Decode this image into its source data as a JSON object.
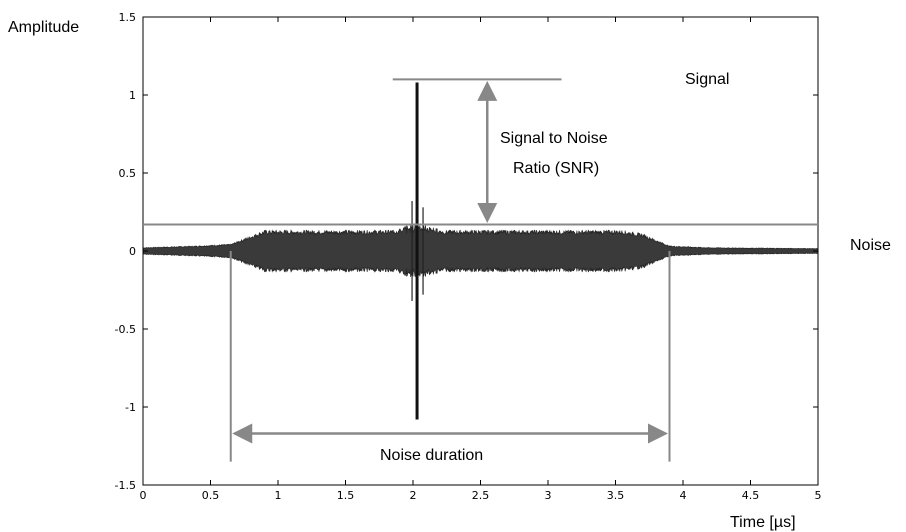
{
  "chart_data": {
    "type": "line",
    "title": "",
    "xlabel": "Time [µs]",
    "ylabel": "Amplitude",
    "xlim": [
      0,
      5
    ],
    "ylim": [
      -1.5,
      1.5
    ],
    "x_ticks": [
      0,
      0.5,
      1,
      1.5,
      2,
      2.5,
      3,
      3.5,
      4,
      4.5,
      5
    ],
    "x_tick_labels": [
      "0",
      "0.5",
      "1",
      "1.5",
      "2",
      "2.5",
      "3",
      "3.5",
      "4",
      "4.5",
      "5"
    ],
    "y_ticks": [
      -1.5,
      -1,
      -0.5,
      0,
      0.5,
      1,
      1.5
    ],
    "y_tick_labels": [
      "-1.5",
      "-1",
      "-0.5",
      "0",
      "0.5",
      "1",
      "1.5"
    ],
    "grid": false,
    "series": [
      {
        "name": "",
        "color": "#222222",
        "envelope": {
          "x": [
            0,
            0.4,
            0.65,
            0.9,
            3.55,
            3.7,
            3.9,
            4.2,
            5
          ],
          "y": [
            0.02,
            0.03,
            0.04,
            0.12,
            0.12,
            0.1,
            0.03,
            0.02,
            0.015
          ]
        },
        "spike": {
          "x": 2.03,
          "y_max": 1.08,
          "y_min": -1.08
        }
      }
    ],
    "annotations": {
      "signal_label": "Signal",
      "noise_label": "Noise",
      "snr_label_line1": "Signal to Noise",
      "snr_label_line2": "Ratio (SNR)",
      "duration_label": "Noise duration",
      "signal_level": 1.1,
      "noise_level": 0.17,
      "noise_start": 0.65,
      "noise_end": 3.9,
      "signal_line_x": [
        1.85,
        3.1
      ],
      "snr_arrow_x": 2.55,
      "duration_arrow_y": -1.17,
      "annotation_color": "#888888"
    }
  }
}
